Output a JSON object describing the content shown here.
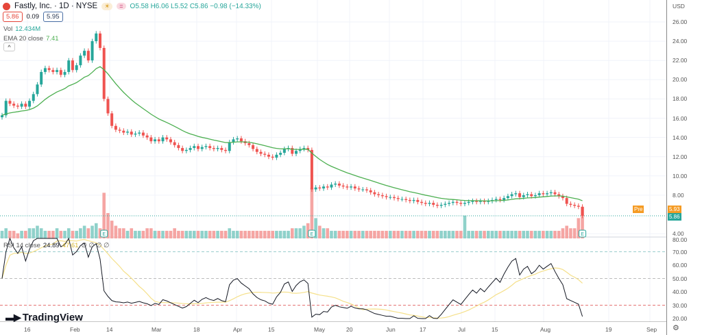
{
  "header": {
    "symbol_title": "Fastly, Inc. · 1D · NYSE",
    "badges": [
      "☀",
      "="
    ],
    "ohlc": "O5.58 H6.06 L5.52 C5.86 −0.98 (−14.33%)",
    "bid": "5.86",
    "spread": "0.09",
    "ask": "5.95"
  },
  "indicators": {
    "vol_label": "Vol",
    "vol_value": "12.434M",
    "ema_label": "EMA 20 close",
    "ema_value": "7.41",
    "collapse": "^",
    "rsi_label": "RSI 14 close",
    "rsi_value": "24.89",
    "rsi_ma_value": "47.61",
    "rsi_extra": "∅ ∅ ∅ ∅"
  },
  "price_axis": {
    "currency": "USD",
    "ticks": [
      "26.00",
      "24.00",
      "22.00",
      "20.00",
      "18.00",
      "16.00",
      "14.00",
      "12.00",
      "10.00",
      "8.00",
      "4.00"
    ],
    "pre_label": "Pre",
    "pre_value": "5.93",
    "last_value": "5.86"
  },
  "rsi_axis": {
    "ticks": [
      "80.00",
      "70.00",
      "60.00",
      "50.00",
      "40.00",
      "30.00",
      "20.00"
    ]
  },
  "time_axis": {
    "labels": [
      "16",
      "Feb",
      "14",
      "Mar",
      "18",
      "Apr",
      "15",
      "May",
      "20",
      "Jun",
      "17",
      "Jul",
      "15",
      "Aug",
      "19",
      "Sep"
    ]
  },
  "brand": "TradingView",
  "earnings_marker": "E",
  "colors": {
    "up": "#26a69a",
    "down": "#ef5350",
    "ema": "#4caf50",
    "rsi": "#131722",
    "rsi_ma": "#f5e08a",
    "pre": "#f59b23"
  },
  "chart_data": {
    "type": "candlestick",
    "closes": [
      16.3,
      17.8,
      17.5,
      17.3,
      17.2,
      17.5,
      17.2,
      17.8,
      18.5,
      19.5,
      20.8,
      21.2,
      21.0,
      20.8,
      21.0,
      20.5,
      20.8,
      22.0,
      21.0,
      21.5,
      22.5,
      23.0,
      22.0,
      24.0,
      24.8,
      23.3,
      18.0,
      16.5,
      15.2,
      14.8,
      14.7,
      14.5,
      14.6,
      14.3,
      14.4,
      14.5,
      14.2,
      14.0,
      13.6,
      13.8,
      13.6,
      14.0,
      13.8,
      13.5,
      13.2,
      12.9,
      12.6,
      12.7,
      12.9,
      13.1,
      12.8,
      13.0,
      13.1,
      12.9,
      12.8,
      12.9,
      12.7,
      12.6,
      13.5,
      13.8,
      13.9,
      13.6,
      13.4,
      13.2,
      12.8,
      12.5,
      12.3,
      12.2,
      12.0,
      11.9,
      12.2,
      12.4,
      12.8,
      12.9,
      12.3,
      12.6,
      12.8,
      12.9,
      12.7,
      8.6,
      8.8,
      8.7,
      8.9,
      8.8,
      9.1,
      9.2,
      9.0,
      8.9,
      8.8,
      8.9,
      8.7,
      8.6,
      8.6,
      8.5,
      8.3,
      8.1,
      8.0,
      7.9,
      7.8,
      7.8,
      7.7,
      7.6,
      7.6,
      7.5,
      7.4,
      7.5,
      7.3,
      7.2,
      7.1,
      7.2,
      7.0,
      6.9,
      7.0,
      7.1,
      7.2,
      7.3,
      7.2,
      7.1,
      7.2,
      7.3,
      7.4,
      7.3,
      7.4,
      7.3,
      7.4,
      7.5,
      7.6,
      7.5,
      7.7,
      7.9,
      8.1,
      8.2,
      7.8,
      8.0,
      8.1,
      7.9,
      8.0,
      8.2,
      8.1,
      8.2,
      8.3,
      8.1,
      7.9,
      7.7,
      7.1,
      7.0,
      6.9,
      6.8,
      5.86
    ],
    "volumes_m": [
      3,
      4,
      3,
      3,
      2,
      3,
      3,
      4,
      4,
      5,
      4,
      3,
      3,
      3,
      4,
      3,
      3,
      4,
      3,
      3,
      4,
      5,
      4,
      5,
      6,
      4,
      18,
      10,
      7,
      5,
      4,
      4,
      3,
      4,
      3,
      3,
      3,
      4,
      4,
      3,
      3,
      3,
      3,
      3,
      4,
      3,
      3,
      3,
      3,
      3,
      3,
      3,
      3,
      3,
      3,
      3,
      3,
      3,
      4,
      3,
      3,
      3,
      3,
      3,
      3,
      3,
      3,
      3,
      3,
      3,
      3,
      3,
      3,
      3,
      4,
      4,
      4,
      5,
      6,
      20,
      8,
      5,
      4,
      4,
      3,
      3,
      3,
      3,
      3,
      3,
      3,
      3,
      3,
      3,
      3,
      3,
      3,
      3,
      3,
      3,
      3,
      3,
      3,
      3,
      3,
      3,
      3,
      3,
      3,
      3,
      3,
      3,
      3,
      3,
      3,
      3,
      3,
      3,
      9,
      3,
      3,
      3,
      3,
      3,
      3,
      3,
      3,
      3,
      3,
      3,
      3,
      3,
      3,
      3,
      3,
      3,
      3,
      3,
      3,
      3,
      3,
      3,
      3,
      4,
      5,
      4,
      4,
      8,
      12.4
    ],
    "earnings_indices": [
      26,
      79,
      148
    ],
    "price_range": [
      4,
      26
    ],
    "rsi_range": [
      20,
      80
    ],
    "rsi_levels": [
      70,
      50,
      30
    ],
    "ema_period": 20,
    "rsi_period": 14
  }
}
